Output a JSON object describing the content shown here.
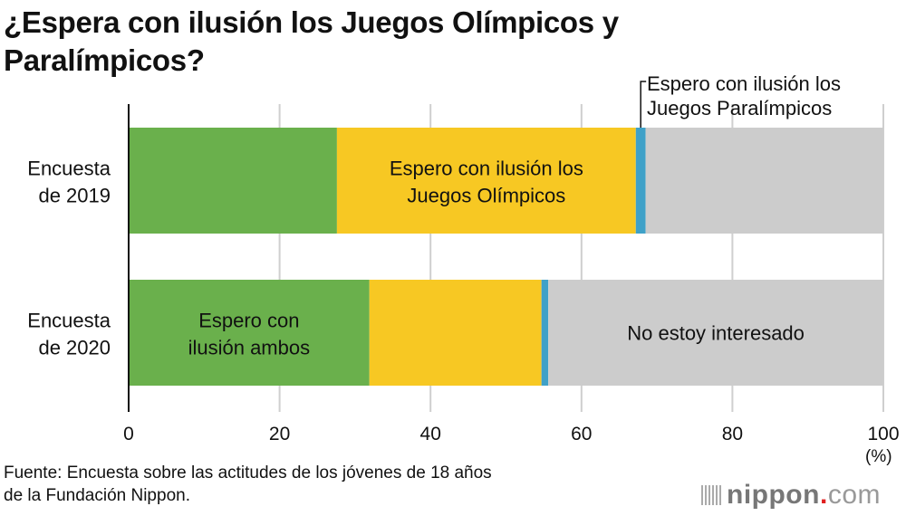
{
  "chart_data": {
    "type": "bar",
    "orientation": "horizontal",
    "stacked": true,
    "title": "¿Espera con ilusión los Juegos Olímpicos y Paralímpicos?",
    "categories": [
      "Encuesta de 2019",
      "Encuesta de 2020"
    ],
    "category_lines": [
      [
        "Encuesta",
        "de 2019"
      ],
      [
        "Encuesta",
        "de 2020"
      ]
    ],
    "series": [
      {
        "name": "Espero con ilusión ambos",
        "color": "#6ab04c",
        "values": [
          27.6,
          31.9
        ]
      },
      {
        "name": "Espero con ilusión los Juegos Olímpicos",
        "color": "#f7c823",
        "values": [
          39.6,
          22.8
        ]
      },
      {
        "name": "Espero con ilusión los Juegos Paralímpicos",
        "color": "#3fa1c8",
        "values": [
          1.3,
          0.9
        ]
      },
      {
        "name": "No estoy interesado",
        "color": "#cccccc",
        "values": [
          31.5,
          44.4
        ]
      }
    ],
    "annotations": [
      {
        "lines": [
          "Espero con ilusión",
          "ilusión ambos"
        ],
        "text": "Espero con ilusión ambos",
        "category": 1,
        "series": 0
      },
      {
        "lines": [
          "Espero con ilusión los",
          "Juegos Olímpicos"
        ],
        "text": "Espero con ilusión los Juegos Olímpicos",
        "category": 0,
        "series": 1
      },
      {
        "lines": [
          "Espero con ilusión los",
          "Juegos Paralímpicos"
        ],
        "text": "Espero con ilusión los Juegos Paralímpicos",
        "category": 0,
        "series": 2,
        "callout": true
      },
      {
        "lines": [
          "No estoy interesado"
        ],
        "text": "No estoy interesado",
        "category": 1,
        "series": 3
      }
    ],
    "xlim": [
      0,
      100
    ],
    "xticks": [
      0,
      20,
      40,
      60,
      80,
      100
    ],
    "xlabel": "(%)",
    "grid": true
  },
  "title_lines": [
    "¿Espera con ilusión los Juegos Olímpicos y",
    "Paralímpicos?"
  ],
  "source_lines": [
    "Fuente: Encuesta sobre las actitudes de los jóvenes de 18 años",
    "de la Fundación Nippon."
  ],
  "unit_label": "(%)",
  "logo": {
    "name": "nippon",
    "dot": ".",
    "tld": "com"
  }
}
